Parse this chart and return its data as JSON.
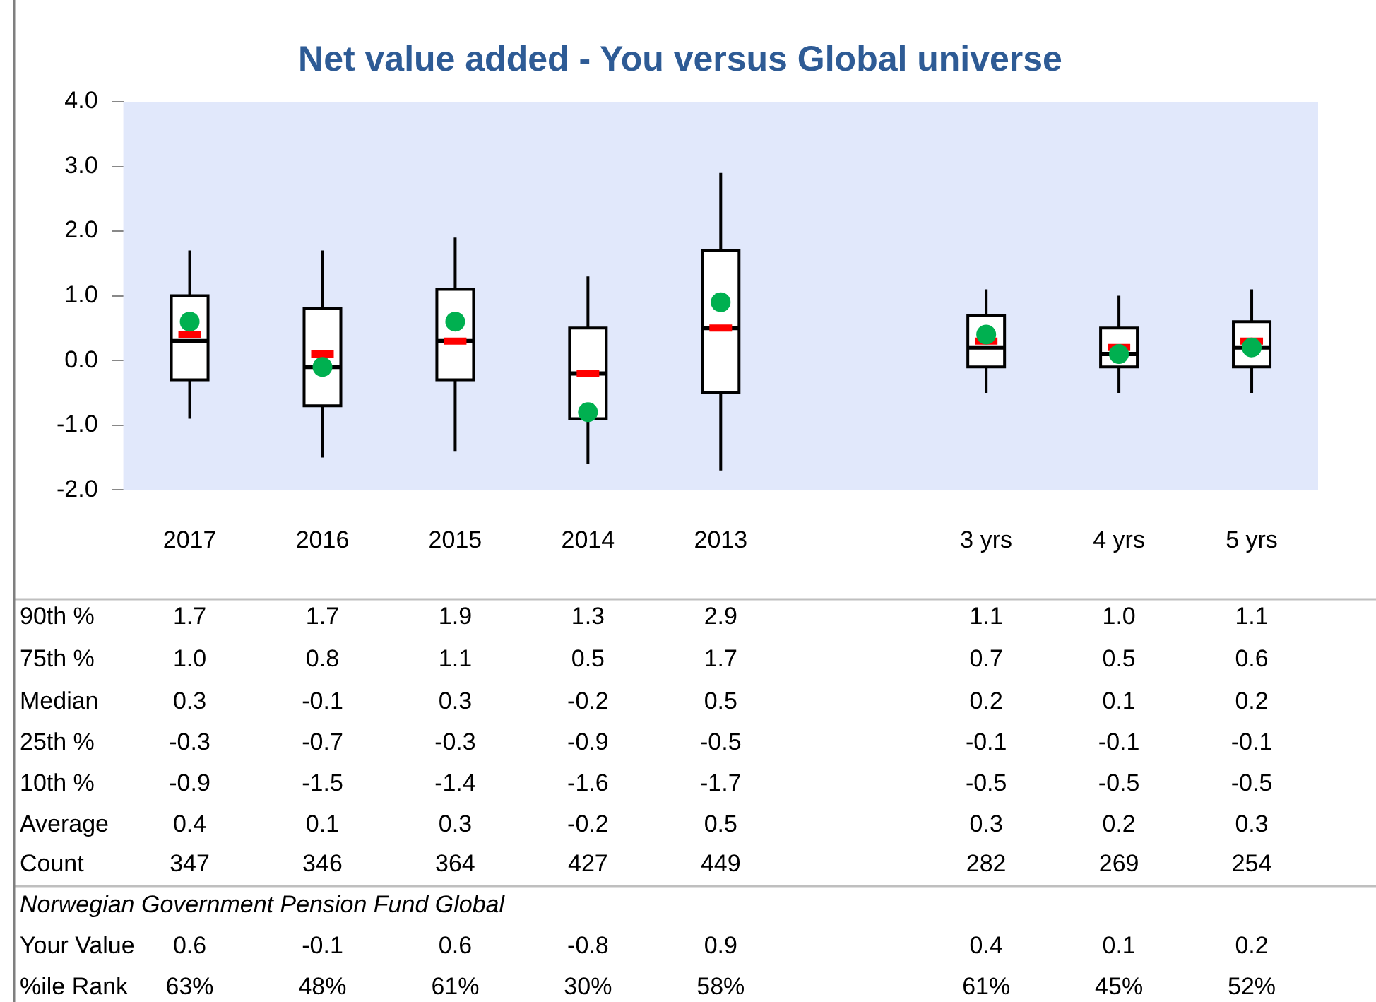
{
  "chart_data": {
    "type": "box",
    "title": "Net value added - You versus Global universe",
    "categories": [
      "2017",
      "2016",
      "2015",
      "2014",
      "2013",
      null,
      "3 yrs",
      "4 yrs",
      "5 yrs"
    ],
    "ylim": [
      -2,
      4
    ],
    "yticks": [
      {
        "value": -2,
        "label": "-2.0"
      },
      {
        "value": -1,
        "label": "-1.0"
      },
      {
        "value": 0,
        "label": "0.0"
      },
      {
        "value": 1,
        "label": "1.0"
      },
      {
        "value": 2,
        "label": "2.0"
      },
      {
        "value": 3,
        "label": "3.0"
      },
      {
        "value": 4,
        "label": "4.0"
      }
    ],
    "grid": false,
    "legend": false,
    "series": [
      {
        "color": "#ffffff",
        "boxes": [
          {
            "low": -0.9,
            "q1": -0.3,
            "median": 0.3,
            "q3": 1.0,
            "high": 1.7,
            "mean": 0.4
          },
          {
            "low": -1.5,
            "q1": -0.7,
            "median": -0.1,
            "q3": 0.8,
            "high": 1.7,
            "mean": 0.1
          },
          {
            "low": -1.4,
            "q1": -0.3,
            "median": 0.3,
            "q3": 1.1,
            "high": 1.9,
            "mean": 0.3
          },
          {
            "low": -1.6,
            "q1": -0.9,
            "median": -0.2,
            "q3": 0.5,
            "high": 1.3,
            "mean": -0.2
          },
          {
            "low": -1.7,
            "q1": -0.5,
            "median": 0.5,
            "q3": 1.7,
            "high": 2.9,
            "mean": 0.5
          },
          null,
          {
            "low": -0.5,
            "q1": -0.1,
            "median": 0.2,
            "q3": 0.7,
            "high": 1.1,
            "mean": 0.3
          },
          {
            "low": -0.5,
            "q1": -0.1,
            "median": 0.1,
            "q3": 0.5,
            "high": 1.0,
            "mean": 0.2
          },
          {
            "low": -0.5,
            "q1": -0.1,
            "median": 0.2,
            "q3": 0.6,
            "high": 1.1,
            "mean": 0.3
          }
        ]
      },
      {
        "type": "scatter",
        "name": "Your Value",
        "color": "#00b050",
        "marker": "circle",
        "values": [
          0.6,
          -0.1,
          0.6,
          -0.8,
          0.9,
          null,
          0.4,
          0.1,
          0.2
        ]
      }
    ],
    "annotations": [
      "90th %",
      "75th %",
      "Median",
      "25th %",
      "10th %",
      "Average",
      "Count",
      "Norwegian Government Pension Fund Global",
      "%ile Rank",
      "1.7",
      "1.7",
      "1.9",
      "1.3",
      "2.9",
      "1.1",
      "1.0",
      "1.1",
      "1.0",
      "0.8",
      "1.1",
      "0.5",
      "1.7",
      "0.7",
      "0.5",
      "0.6",
      "0.3",
      "-0.1",
      "0.3",
      "-0.2",
      "0.5",
      "0.2",
      "0.1",
      "0.2",
      "-0.3",
      "-0.7",
      "-0.3",
      "-0.9",
      "-0.5",
      "-0.1",
      "-0.1",
      "-0.1",
      "-0.9",
      "-1.5",
      "-1.4",
      "-1.6",
      "-1.7",
      "-0.5",
      "-0.5",
      "-0.5",
      "0.4",
      "0.1",
      "0.3",
      "-0.2",
      "0.5",
      "0.3",
      "0.2",
      "0.3",
      "347",
      "346",
      "364",
      "427",
      "449",
      "282",
      "269",
      "254",
      "0.6",
      "-0.1",
      "0.6",
      "-0.8",
      "0.9",
      "0.4",
      "0.1",
      "0.2",
      "63%",
      "48%",
      "61%",
      "30%",
      "58%",
      "61%",
      "45%",
      "52%"
    ]
  }
}
